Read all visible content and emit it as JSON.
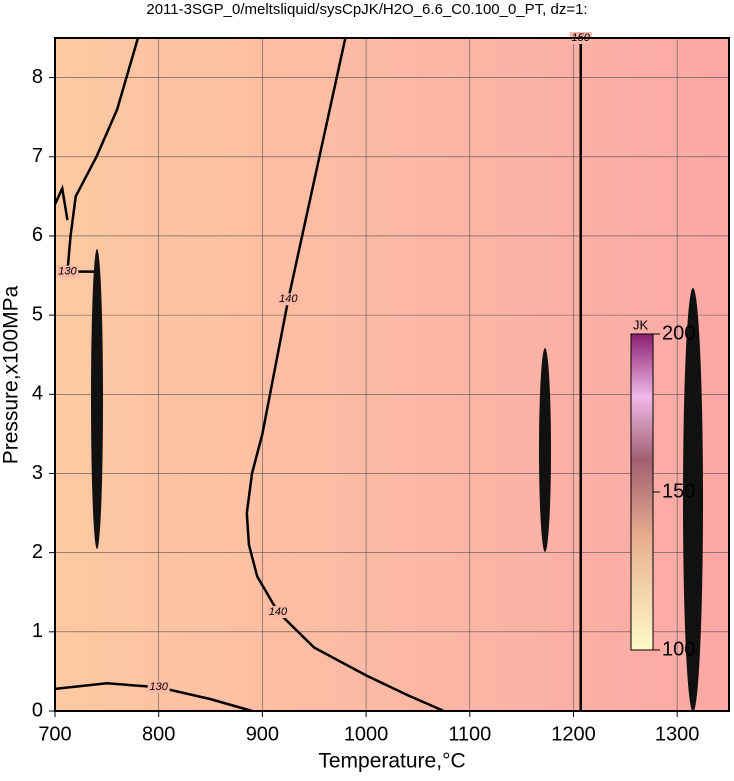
{
  "chart_data": {
    "type": "contour",
    "title": "2011-3SGP_0/meltsliquid/sysCpJK/H2O_6.6_C0.100_0_PT, dz=1:",
    "x_label": "Temperature,°C",
    "y_label": "Pressure,x100MPa",
    "xlim": [
      700,
      1350
    ],
    "ylim": [
      0,
      8.5
    ],
    "xticks": [
      700,
      800,
      900,
      1000,
      1100,
      1200,
      1300
    ],
    "yticks": [
      0,
      1,
      2,
      3,
      4,
      5,
      6,
      7,
      8
    ],
    "grid": true,
    "contours": [
      {
        "level": 130,
        "x": [
          700,
          750,
          800,
          850,
          890
        ],
        "y": [
          0.28,
          0.35,
          0.3,
          0.15,
          0
        ]
      },
      {
        "level": 130,
        "x": [
          780,
          760,
          740,
          720,
          715,
          712,
          740,
          null,
          700,
          707,
          712
        ],
        "y": [
          8.5,
          7.6,
          7.0,
          6.5,
          6.0,
          5.55,
          5.55,
          null,
          6.4,
          6.6,
          6.2
        ]
      },
      {
        "level": 140,
        "x": [
          1075,
          1040,
          1000,
          950,
          915,
          895,
          887,
          885
        ],
        "y": [
          0,
          0.2,
          0.45,
          0.8,
          1.25,
          1.7,
          2.1,
          2.5
        ]
      },
      {
        "level": 140,
        "x": [
          885,
          890,
          900,
          925,
          955,
          980
        ],
        "y": [
          2.5,
          3.0,
          3.5,
          5.2,
          7.0,
          8.5
        ]
      },
      {
        "level": 150,
        "x": [
          1207,
          1207
        ],
        "y": [
          0,
          8.5
        ]
      }
    ],
    "colorbar": {
      "label": "JK",
      "lim": [
        100,
        200
      ],
      "ticks": [
        100,
        150,
        200
      ]
    }
  }
}
